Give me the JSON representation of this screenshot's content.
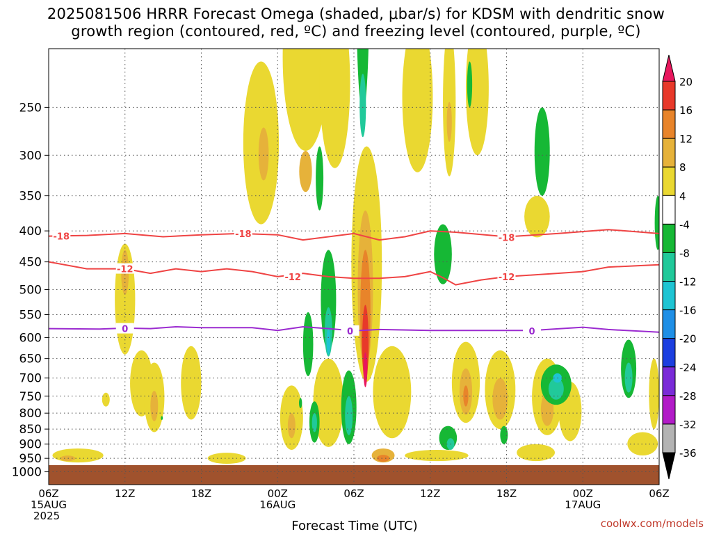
{
  "title_line1": "2025081506 HRRR Forecast Omega (shaded, μbar/s) for KDSM with dendritic snow",
  "title_line2": "growth region (contoured, red, ºC) and freezing level (contoured, purple, ºC)",
  "credit": "coolwx.com/models",
  "chart_data": {
    "type": "heatmap",
    "xlabel": "Forecast Time (UTC)",
    "ylabel": "",
    "x_ticks": [
      {
        "hour": 0,
        "lines": [
          "06Z",
          "15AUG",
          "2025"
        ]
      },
      {
        "hour": 6,
        "lines": [
          "12Z"
        ]
      },
      {
        "hour": 12,
        "lines": [
          "18Z"
        ]
      },
      {
        "hour": 18,
        "lines": [
          "00Z",
          "16AUG"
        ]
      },
      {
        "hour": 24,
        "lines": [
          "06Z"
        ]
      },
      {
        "hour": 30,
        "lines": [
          "12Z"
        ]
      },
      {
        "hour": 36,
        "lines": [
          "18Z"
        ]
      },
      {
        "hour": 42,
        "lines": [
          "00Z",
          "17AUG"
        ]
      },
      {
        "hour": 48,
        "lines": [
          "06Z"
        ]
      }
    ],
    "xlim": [
      0,
      48
    ],
    "pressure_ticks": [
      250,
      300,
      350,
      400,
      450,
      500,
      550,
      600,
      650,
      700,
      750,
      800,
      850,
      900,
      950,
      1000
    ],
    "ylim": [
      1050,
      200
    ],
    "ground_level_hPa": 975,
    "colorbar": {
      "labels": [
        "20",
        "16",
        "12",
        "8",
        "4",
        "-4",
        "-8",
        "-12",
        "-16",
        "-20",
        "-24",
        "-28",
        "-32",
        "-36"
      ],
      "colors": [
        "#e8175d",
        "#e8392a",
        "#e8842a",
        "#e6b23a",
        "#ead831",
        "#ffffff",
        "#16b835",
        "#21c99a",
        "#1ec4d3",
        "#1f8fe6",
        "#1c3fe0",
        "#7a2bd8",
        "#b21bc8",
        "#b3b3b3",
        "#000000"
      ]
    },
    "contours": [
      {
        "label": "-18",
        "color": "#ef4444",
        "points": [
          [
            0,
            408
          ],
          [
            3,
            407
          ],
          [
            6,
            404
          ],
          [
            9,
            409
          ],
          [
            12,
            406
          ],
          [
            15,
            404
          ],
          [
            18,
            406
          ],
          [
            20,
            414
          ],
          [
            22,
            409
          ],
          [
            24,
            404
          ],
          [
            26,
            414
          ],
          [
            28,
            409
          ],
          [
            30,
            400
          ],
          [
            32,
            402
          ],
          [
            36,
            409
          ],
          [
            40,
            404
          ],
          [
            44,
            398
          ],
          [
            48,
            404
          ]
        ]
      },
      {
        "label": "-12",
        "color": "#ef4444",
        "points": [
          [
            0,
            450
          ],
          [
            3,
            462
          ],
          [
            6,
            462
          ],
          [
            8,
            470
          ],
          [
            10,
            462
          ],
          [
            12,
            467
          ],
          [
            14,
            462
          ],
          [
            16,
            467
          ],
          [
            18,
            476
          ],
          [
            20,
            470
          ],
          [
            22,
            476
          ],
          [
            24,
            479
          ],
          [
            26,
            479
          ],
          [
            28,
            476
          ],
          [
            30,
            467
          ],
          [
            31,
            478
          ],
          [
            32,
            491
          ],
          [
            34,
            482
          ],
          [
            36,
            476
          ],
          [
            40,
            470
          ],
          [
            42,
            467
          ],
          [
            44,
            459
          ],
          [
            48,
            455
          ]
        ]
      },
      {
        "label": "0",
        "color": "#9b2bd0",
        "points": [
          [
            0,
            580
          ],
          [
            4,
            581
          ],
          [
            6,
            579
          ],
          [
            8,
            580
          ],
          [
            10,
            576
          ],
          [
            12,
            578
          ],
          [
            16,
            578
          ],
          [
            18,
            584
          ],
          [
            20,
            576
          ],
          [
            22,
            580
          ],
          [
            24,
            585
          ],
          [
            26,
            582
          ],
          [
            30,
            584
          ],
          [
            34,
            584
          ],
          [
            38,
            584
          ],
          [
            42,
            577
          ],
          [
            44,
            582
          ],
          [
            48,
            588
          ]
        ]
      }
    ],
    "contour_labels": [
      {
        "series": "-18",
        "x": 1.0,
        "p": 408
      },
      {
        "series": "-18",
        "x": 15.3,
        "p": 404
      },
      {
        "series": "-18",
        "x": 36.0,
        "p": 410
      },
      {
        "series": "-12",
        "x": 6.0,
        "p": 462
      },
      {
        "series": "-12",
        "x": 19.2,
        "p": 476
      },
      {
        "series": "-12",
        "x": 36.0,
        "p": 476
      },
      {
        "series": "0",
        "x": 6.0,
        "p": 580
      },
      {
        "series": "0",
        "x": 23.7,
        "p": 585
      },
      {
        "series": "0",
        "x": 38.0,
        "p": 585
      }
    ],
    "omega_cells": [
      {
        "x": 6.0,
        "p": 530,
        "w": 0.8,
        "dp": 220,
        "level": "4"
      },
      {
        "x": 6.0,
        "p": 470,
        "w": 0.3,
        "dp": 80,
        "level": "8"
      },
      {
        "x": 7.3,
        "p": 720,
        "w": 0.9,
        "dp": 180,
        "level": "4"
      },
      {
        "x": 8.3,
        "p": 760,
        "w": 0.8,
        "dp": 200,
        "level": "4"
      },
      {
        "x": 8.3,
        "p": 780,
        "w": 0.3,
        "dp": 90,
        "level": "8"
      },
      {
        "x": 11.2,
        "p": 720,
        "w": 0.8,
        "dp": 200,
        "level": "4"
      },
      {
        "x": 2.3,
        "p": 940,
        "w": 2.0,
        "dp": 50,
        "level": "4"
      },
      {
        "x": 1.5,
        "p": 950,
        "w": 0.6,
        "dp": 20,
        "level": "8"
      },
      {
        "x": 4.5,
        "p": 760,
        "w": 0.3,
        "dp": 40,
        "level": "4"
      },
      {
        "x": 16.7,
        "p": 300,
        "w": 1.4,
        "dp": 180,
        "level": "4"
      },
      {
        "x": 16.9,
        "p": 300,
        "w": 0.4,
        "dp": 60,
        "level": "8"
      },
      {
        "x": 20.2,
        "p": 220,
        "w": 1.8,
        "dp": 150,
        "level": "4"
      },
      {
        "x": 20.2,
        "p": 320,
        "w": 0.5,
        "dp": 50,
        "level": "8"
      },
      {
        "x": 22.5,
        "p": 240,
        "w": 1.2,
        "dp": 150,
        "level": "4"
      },
      {
        "x": 29.0,
        "p": 250,
        "w": 1.2,
        "dp": 140,
        "level": "4"
      },
      {
        "x": 31.5,
        "p": 255,
        "w": 0.5,
        "dp": 140,
        "level": "4"
      },
      {
        "x": 31.5,
        "p": 265,
        "w": 0.2,
        "dp": 40,
        "level": "8"
      },
      {
        "x": 33.7,
        "p": 240,
        "w": 0.9,
        "dp": 120,
        "level": "4"
      },
      {
        "x": 38.4,
        "p": 380,
        "w": 1.0,
        "dp": 60,
        "level": "4"
      },
      {
        "x": 22.0,
        "p": 780,
        "w": 1.2,
        "dp": 260,
        "level": "4"
      },
      {
        "x": 19.1,
        "p": 820,
        "w": 0.9,
        "dp": 200,
        "level": "4"
      },
      {
        "x": 19.1,
        "p": 840,
        "w": 0.3,
        "dp": 80,
        "level": "8"
      },
      {
        "x": 25.0,
        "p": 500,
        "w": 1.2,
        "dp": 420,
        "level": "4"
      },
      {
        "x": 24.9,
        "p": 520,
        "w": 0.6,
        "dp": 300,
        "level": "8"
      },
      {
        "x": 24.9,
        "p": 560,
        "w": 0.4,
        "dp": 260,
        "level": "12"
      },
      {
        "x": 24.9,
        "p": 620,
        "w": 0.25,
        "dp": 180,
        "level": "16"
      },
      {
        "x": 24.9,
        "p": 680,
        "w": 0.15,
        "dp": 90,
        "level": "20"
      },
      {
        "x": 27.0,
        "p": 750,
        "w": 1.5,
        "dp": 260,
        "level": "4"
      },
      {
        "x": 26.3,
        "p": 940,
        "w": 0.9,
        "dp": 50,
        "level": "8"
      },
      {
        "x": 26.3,
        "p": 950,
        "w": 0.5,
        "dp": 25,
        "level": "12"
      },
      {
        "x": 32.8,
        "p": 720,
        "w": 1.1,
        "dp": 220,
        "level": "4"
      },
      {
        "x": 32.8,
        "p": 740,
        "w": 0.5,
        "dp": 130,
        "level": "8"
      },
      {
        "x": 32.8,
        "p": 750,
        "w": 0.2,
        "dp": 60,
        "level": "12"
      },
      {
        "x": 35.5,
        "p": 740,
        "w": 1.2,
        "dp": 220,
        "level": "4"
      },
      {
        "x": 35.5,
        "p": 760,
        "w": 0.6,
        "dp": 120,
        "level": "8"
      },
      {
        "x": 39.2,
        "p": 760,
        "w": 1.2,
        "dp": 220,
        "level": "4"
      },
      {
        "x": 39.2,
        "p": 790,
        "w": 0.5,
        "dp": 100,
        "level": "8"
      },
      {
        "x": 41.0,
        "p": 800,
        "w": 0.9,
        "dp": 180,
        "level": "4"
      },
      {
        "x": 46.7,
        "p": 900,
        "w": 1.2,
        "dp": 80,
        "level": "4"
      },
      {
        "x": 47.6,
        "p": 750,
        "w": 0.4,
        "dp": 200,
        "level": "4"
      },
      {
        "x": 14.0,
        "p": 950,
        "w": 1.5,
        "dp": 40,
        "level": "4"
      },
      {
        "x": 30.5,
        "p": 940,
        "w": 2.5,
        "dp": 40,
        "level": "4"
      },
      {
        "x": 38.3,
        "p": 930,
        "w": 1.5,
        "dp": 60,
        "level": "4"
      },
      {
        "x": 20.4,
        "p": 620,
        "w": 0.4,
        "dp": 150,
        "level": "-4"
      },
      {
        "x": 22.0,
        "p": 530,
        "w": 0.6,
        "dp": 200,
        "level": "-4"
      },
      {
        "x": 22.0,
        "p": 590,
        "w": 0.3,
        "dp": 110,
        "level": "-8"
      },
      {
        "x": 22.0,
        "p": 610,
        "w": 0.15,
        "dp": 60,
        "level": "-12"
      },
      {
        "x": 21.3,
        "p": 330,
        "w": 0.3,
        "dp": 80,
        "level": "-4"
      },
      {
        "x": 20.9,
        "p": 830,
        "w": 0.4,
        "dp": 130,
        "level": "-4"
      },
      {
        "x": 20.9,
        "p": 830,
        "w": 0.2,
        "dp": 60,
        "level": "-8"
      },
      {
        "x": 24.7,
        "p": 180,
        "w": 0.5,
        "dp": 150,
        "level": "-4"
      },
      {
        "x": 23.6,
        "p": 790,
        "w": 0.6,
        "dp": 220,
        "level": "-4"
      },
      {
        "x": 23.6,
        "p": 810,
        "w": 0.3,
        "dp": 120,
        "level": "-8"
      },
      {
        "x": 31.0,
        "p": 440,
        "w": 0.7,
        "dp": 100,
        "level": "-4"
      },
      {
        "x": 31.4,
        "p": 880,
        "w": 0.7,
        "dp": 80,
        "level": "-4"
      },
      {
        "x": 31.6,
        "p": 900,
        "w": 0.3,
        "dp": 40,
        "level": "-8"
      },
      {
        "x": 35.8,
        "p": 870,
        "w": 0.3,
        "dp": 60,
        "level": "-4"
      },
      {
        "x": 38.8,
        "p": 300,
        "w": 0.6,
        "dp": 100,
        "level": "-4"
      },
      {
        "x": 39.9,
        "p": 720,
        "w": 1.2,
        "dp": 110,
        "level": "-4"
      },
      {
        "x": 39.9,
        "p": 730,
        "w": 0.6,
        "dp": 60,
        "level": "-8"
      },
      {
        "x": 45.6,
        "p": 680,
        "w": 0.6,
        "dp": 150,
        "level": "-4"
      },
      {
        "x": 45.6,
        "p": 700,
        "w": 0.3,
        "dp": 80,
        "level": "-8"
      },
      {
        "x": 47.9,
        "p": 390,
        "w": 0.25,
        "dp": 80,
        "level": "-4"
      },
      {
        "x": 19.8,
        "p": 770,
        "w": 0.12,
        "dp": 30,
        "level": "-4"
      },
      {
        "x": 40.0,
        "p": 700,
        "w": 0.35,
        "dp": 25,
        "level": "-12"
      },
      {
        "x": 24.7,
        "p": 250,
        "w": 0.25,
        "dp": 60,
        "level": "-8"
      },
      {
        "x": 33.1,
        "p": 230,
        "w": 0.2,
        "dp": 40,
        "level": "-4"
      },
      {
        "x": 8.9,
        "p": 815,
        "w": 0.08,
        "dp": 12,
        "level": "-4"
      }
    ]
  }
}
